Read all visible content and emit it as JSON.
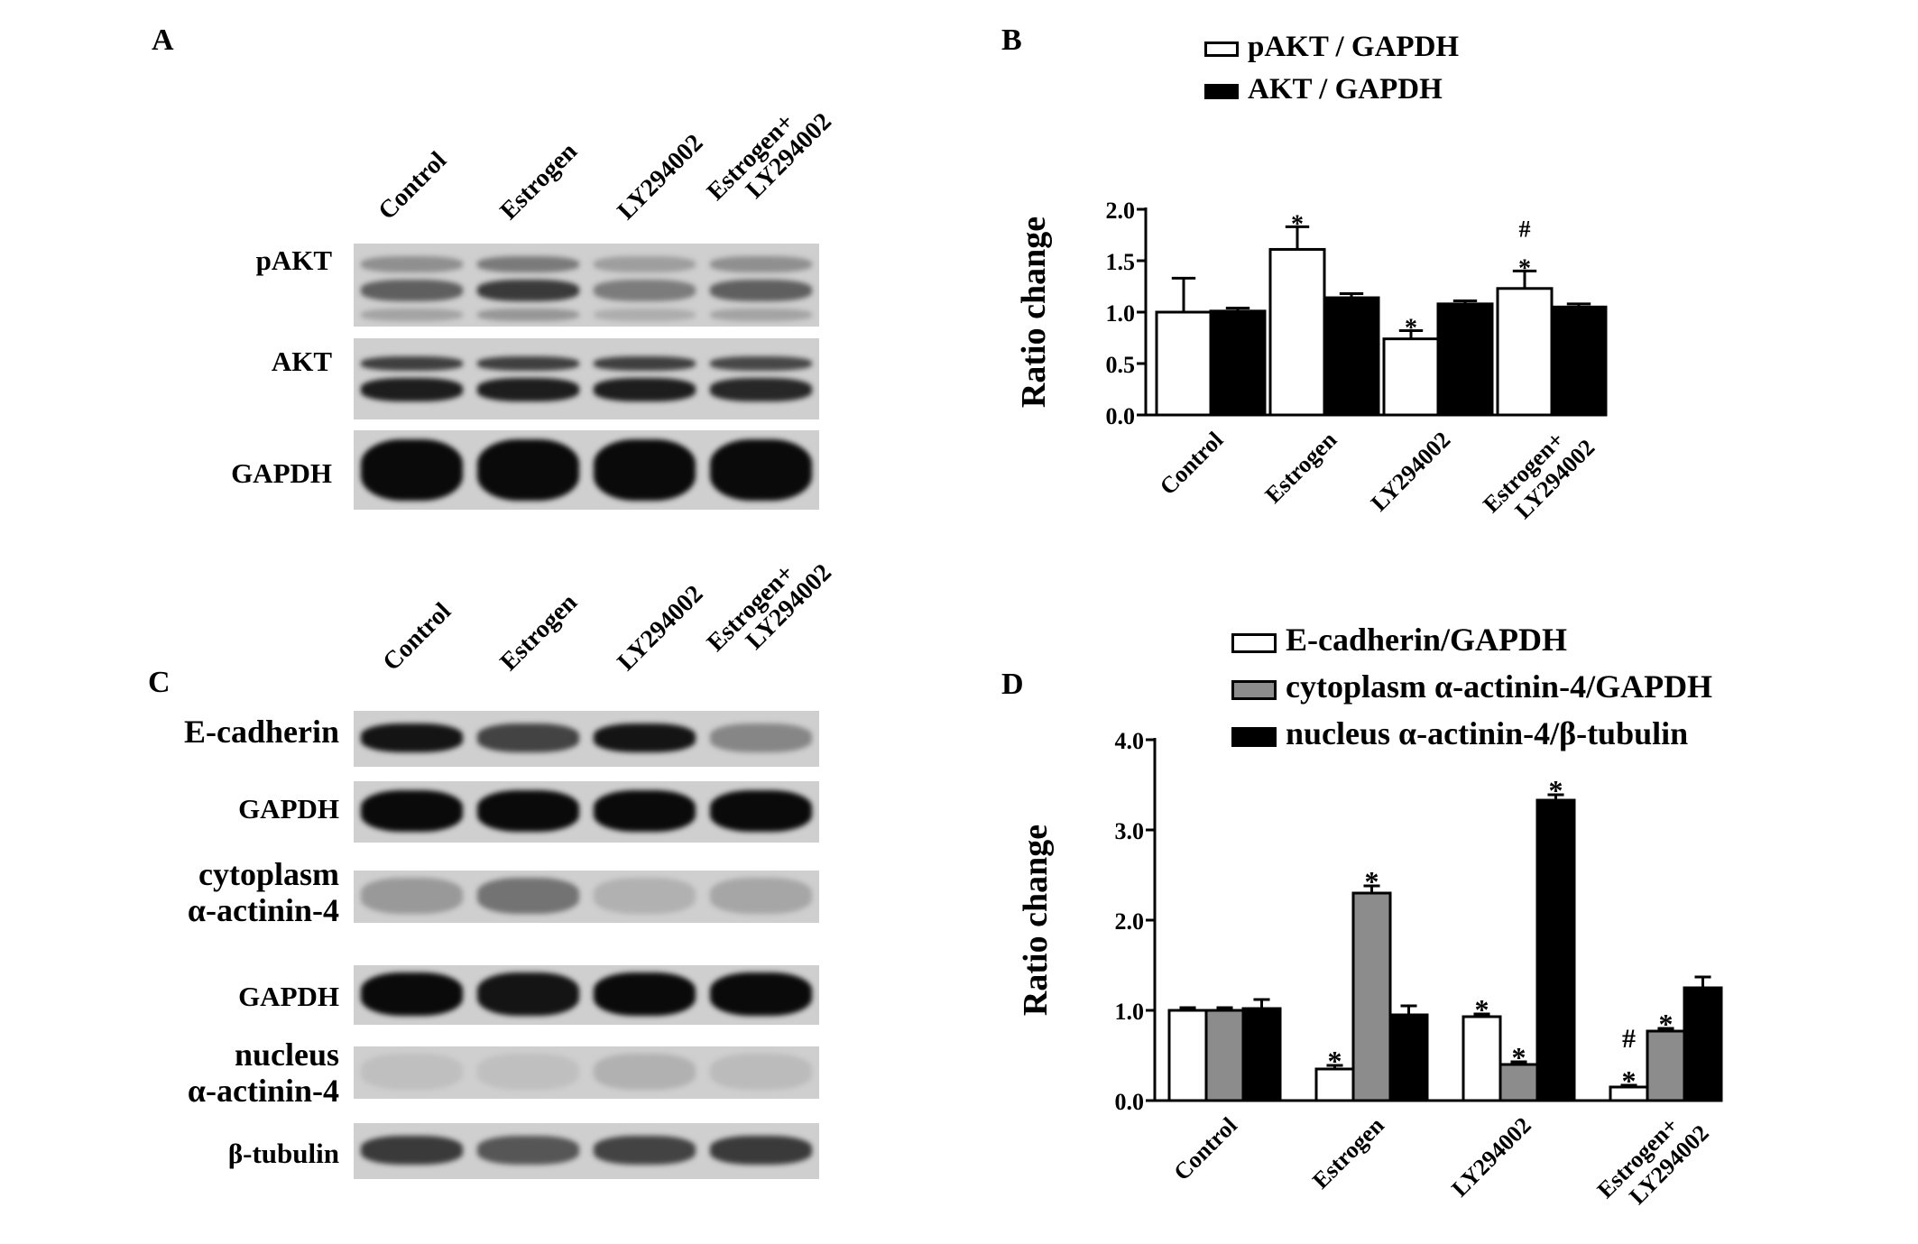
{
  "panels": {
    "a": "A",
    "b": "B",
    "c": "C",
    "d": "D"
  },
  "blot_a": {
    "lanes": [
      "Control",
      "Estrogen",
      "LY294002",
      "Estrogen+\nLY294002"
    ],
    "rows": [
      "pAKT",
      "AKT",
      "GAPDH"
    ],
    "band_intensity": {
      "pAKT": [
        0.55,
        0.75,
        0.4,
        0.55
      ],
      "AKT": [
        0.9,
        0.9,
        0.9,
        0.85
      ],
      "GAPDH": [
        1.0,
        1.0,
        1.0,
        1.0
      ]
    }
  },
  "blot_c": {
    "lanes": [
      "Control",
      "Estrogen",
      "LY294002",
      "Estrogen+\nLY294002"
    ],
    "rows": [
      "E-cadherin",
      "GAPDH",
      "cytoplasm\nα-actinin-4",
      "GAPDH",
      "nucleus\nα-actinin-4",
      "β-tubulin"
    ],
    "band_intensity": {
      "E-cadherin": [
        0.95,
        0.7,
        0.95,
        0.35
      ],
      "GAPDH_1": [
        1.0,
        1.0,
        1.0,
        1.0
      ],
      "cytoplasm": [
        0.25,
        0.45,
        0.12,
        0.18
      ],
      "GAPDH_2": [
        1.0,
        0.95,
        1.0,
        1.0
      ],
      "nucleus": [
        0.05,
        0.05,
        0.12,
        0.07
      ],
      "tubulin": [
        0.75,
        0.6,
        0.7,
        0.75
      ]
    }
  },
  "chart_data": [
    {
      "panel": "B",
      "type": "bar",
      "categories": [
        "Control",
        "Estrogen",
        "LY294002",
        "Estrogen+\nLY294002"
      ],
      "ylabel": "Ratio change",
      "ylim": [
        0,
        2.0
      ],
      "yticks": [
        "0.0",
        "0.5",
        "1.0",
        "1.5",
        "2.0"
      ],
      "series": [
        {
          "name": "pAKT / GAPDH",
          "fill": "#ffffff",
          "values": [
            1.0,
            1.61,
            0.74,
            1.23
          ],
          "errors": [
            0.33,
            0.22,
            0.08,
            0.17
          ],
          "annotations": [
            "",
            "*",
            "*",
            "#\n*"
          ]
        },
        {
          "name": "AKT / GAPDH",
          "fill": "#000000",
          "values": [
            1.01,
            1.14,
            1.08,
            1.05
          ],
          "errors": [
            0.03,
            0.04,
            0.03,
            0.03
          ],
          "annotations": [
            "",
            "",
            "",
            ""
          ]
        }
      ]
    },
    {
      "panel": "D",
      "type": "bar",
      "categories": [
        "Control",
        "Estrogen",
        "LY294002",
        "Estrogen+\nLY294002"
      ],
      "ylabel": "Ratio change",
      "ylim": [
        0,
        4.0
      ],
      "yticks": [
        "0.0",
        "1.0",
        "2.0",
        "3.0",
        "4.0"
      ],
      "series": [
        {
          "name": "E-cadherin/GAPDH",
          "fill": "#ffffff",
          "values": [
            1.0,
            0.35,
            0.93,
            0.15
          ],
          "errors": [
            0.03,
            0.04,
            0.03,
            0.02
          ],
          "annotations": [
            "",
            "*",
            "*",
            "#\n*"
          ]
        },
        {
          "name": "cytoplasm α-actinin-4/GAPDH",
          "fill": "#8c8c8c",
          "values": [
            1.0,
            2.3,
            0.4,
            0.77
          ],
          "errors": [
            0.03,
            0.08,
            0.03,
            0.03
          ],
          "annotations": [
            "",
            "*",
            "*",
            "*"
          ]
        },
        {
          "name": "nucleus α-actinin-4/β-tubulin",
          "fill": "#000000",
          "values": [
            1.02,
            0.95,
            3.33,
            1.25
          ],
          "errors": [
            0.1,
            0.1,
            0.06,
            0.12
          ],
          "annotations": [
            "",
            "",
            "*",
            ""
          ]
        }
      ]
    }
  ]
}
